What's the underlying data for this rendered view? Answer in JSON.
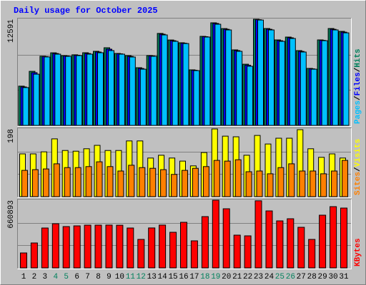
{
  "chart_data": [
    {
      "type": "bar",
      "title": "Daily usage for October 2025",
      "ylim": [
        0,
        12591
      ],
      "yticks": [
        12591
      ],
      "legend_separator": "/",
      "series": [
        {
          "name": "Hits",
          "color": "#00805c",
          "values": [
            4652,
            6418,
            8203,
            8614,
            8276,
            8371,
            8622,
            8790,
            9208,
            8531,
            8279,
            6841,
            8285,
            10907,
            10136,
            9799,
            6588,
            10561,
            12172,
            11487,
            8954,
            7263,
            12591,
            11490,
            10143,
            10475,
            8869,
            6757,
            10138,
            11494,
            11151
          ]
        },
        {
          "name": "Files",
          "color": "#0000ff",
          "values": [
            4560,
            6250,
            8160,
            8530,
            8230,
            8320,
            8530,
            8700,
            9040,
            8490,
            8190,
            6750,
            8240,
            10820,
            10050,
            9750,
            6540,
            10520,
            12090,
            11400,
            8870,
            7140,
            12540,
            11400,
            10050,
            10390,
            8780,
            6710,
            10090,
            11400,
            11060
          ]
        },
        {
          "name": "Pages",
          "color": "#00c0ff",
          "values": [
            4483,
            6080,
            8120,
            8450,
            8190,
            8280,
            8450,
            8620,
            8870,
            8450,
            8110,
            6670,
            8200,
            10730,
            9970,
            9710,
            6500,
            10480,
            12000,
            11320,
            8790,
            7010,
            12500,
            11320,
            9970,
            10310,
            8700,
            6670,
            10050,
            11320,
            10980
          ]
        }
      ]
    },
    {
      "type": "bar",
      "ylim": [
        0,
        198
      ],
      "yticks": [
        198
      ],
      "legend_separator": "/",
      "series": [
        {
          "name": "Visits",
          "color": "#ffff00",
          "values": [
            125,
            125,
            131,
            169,
            135,
            133,
            140,
            150,
            135,
            135,
            163,
            163,
            113,
            121,
            113,
            104,
            90,
            129,
            198,
            177,
            175,
            121,
            179,
            154,
            171,
            171,
            196,
            140,
            115,
            125,
            113
          ]
        },
        {
          "name": "Sites",
          "color": "#ff8000",
          "values": [
            77,
            79,
            81,
            96,
            85,
            85,
            88,
            102,
            88,
            75,
            92,
            85,
            83,
            79,
            65,
            77,
            83,
            88,
            106,
            104,
            108,
            73,
            75,
            67,
            85,
            96,
            75,
            75,
            67,
            75,
            106
          ]
        }
      ]
    },
    {
      "type": "bar",
      "ylim": [
        0,
        660893
      ],
      "yticks": [
        660893
      ],
      "categories": [
        "1",
        "2",
        "3",
        "4",
        "5",
        "6",
        "7",
        "8",
        "9",
        "10",
        "11",
        "12",
        "13",
        "14",
        "15",
        "16",
        "17",
        "18",
        "19",
        "20",
        "21",
        "22",
        "23",
        "24",
        "25",
        "26",
        "27",
        "28",
        "29",
        "30",
        "31"
      ],
      "category_colors": [
        "#000000",
        "#000000",
        "#000000",
        "#00805c",
        "#00805c",
        "#000000",
        "#000000",
        "#000000",
        "#000000",
        "#000000",
        "#00805c",
        "#00805c",
        "#000000",
        "#000000",
        "#000000",
        "#000000",
        "#000000",
        "#00805c",
        "#00805c",
        "#000000",
        "#000000",
        "#000000",
        "#000000",
        "#000000",
        "#00805c",
        "#00805c",
        "#000000",
        "#000000",
        "#000000",
        "#000000",
        "#000000"
      ],
      "series": [
        {
          "name": "KBytes",
          "color": "#ff0000",
          "values": [
            146097,
            243495,
            389592,
            431334,
            403506,
            410463,
            417420,
            417380,
            418012,
            416930,
            389592,
            278280,
            390114,
            417765,
            347850,
            445248,
            264366,
            500904,
            660893,
            577431,
            320022,
            313065,
            655120,
            556560,
            459162,
            480033,
            396549,
            278280,
            514818,
            598302,
            584388
          ]
        }
      ]
    }
  ]
}
